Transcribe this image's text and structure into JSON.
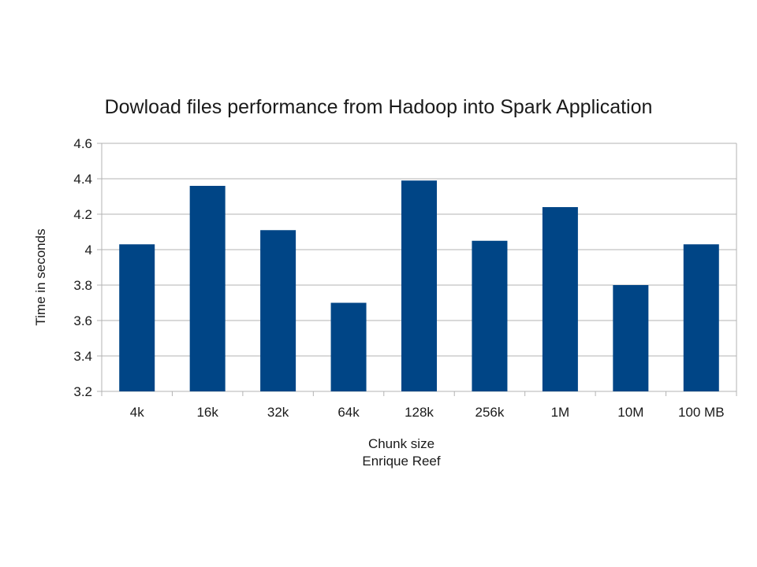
{
  "chart_data": {
    "type": "bar",
    "title": "Dowload files performance from Hadoop into Spark Application",
    "xlabel": "Chunk size",
    "xlabel_sub": "Enrique Reef",
    "ylabel": "Time in seconds",
    "categories": [
      "4k",
      "16k",
      "32k",
      "64k",
      "128k",
      "256k",
      "1M",
      "10M",
      "100 MB"
    ],
    "values": [
      4.03,
      4.36,
      4.11,
      3.7,
      4.39,
      4.05,
      4.24,
      3.8,
      4.03
    ],
    "ylim": [
      3.2,
      4.6
    ],
    "yticks": [
      "3.2",
      "3.4",
      "3.6",
      "3.8",
      "4",
      "4.2",
      "4.4",
      "4.6"
    ],
    "grid": true,
    "legend": "none",
    "bar_color": "#004586",
    "grid_color": "#b3b3b3"
  }
}
